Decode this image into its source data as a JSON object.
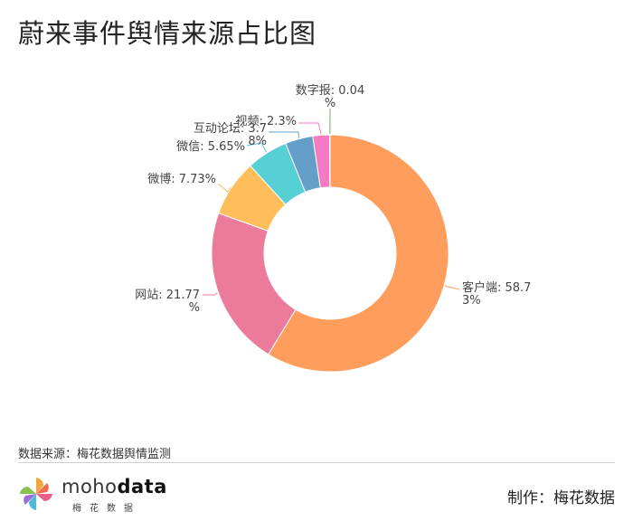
{
  "title": "蔚来事件舆情来源占比图",
  "source": "数据来源：梅花数据舆情监测",
  "footer": {
    "brand_prefix": "moho",
    "brand_suffix": "data",
    "brand_sub": "梅花数据",
    "maker": "制作：梅花数据"
  },
  "chart_data": {
    "type": "pie",
    "style": "donut",
    "title": "蔚来事件舆情来源占比图",
    "slices": [
      {
        "name": "客户端",
        "value": 58.73,
        "color": "#ff9d5c",
        "label_lines": [
          "客户端: 58.7",
          "3%"
        ]
      },
      {
        "name": "网站",
        "value": 21.77,
        "color": "#ec7b9b",
        "label_lines": [
          "网站: 21.77",
          "%"
        ]
      },
      {
        "name": "微博",
        "value": 7.73,
        "color": "#ffbe5a",
        "label_lines": [
          "微博: 7.73%"
        ]
      },
      {
        "name": "微信",
        "value": 5.65,
        "color": "#56d0d4",
        "label_lines": [
          "微信: 5.65%"
        ]
      },
      {
        "name": "互动论坛",
        "value": 3.78,
        "color": "#659ec8",
        "label_lines": [
          "互动论坛: 3.7",
          "8%"
        ]
      },
      {
        "name": "视频",
        "value": 2.3,
        "color": "#f47ac2",
        "label_lines": [
          "视频: 2.3%"
        ]
      },
      {
        "name": "数字报",
        "value": 0.04,
        "color": "#7fa86a",
        "label_lines": [
          "数字报: 0.04",
          "%"
        ]
      }
    ]
  }
}
